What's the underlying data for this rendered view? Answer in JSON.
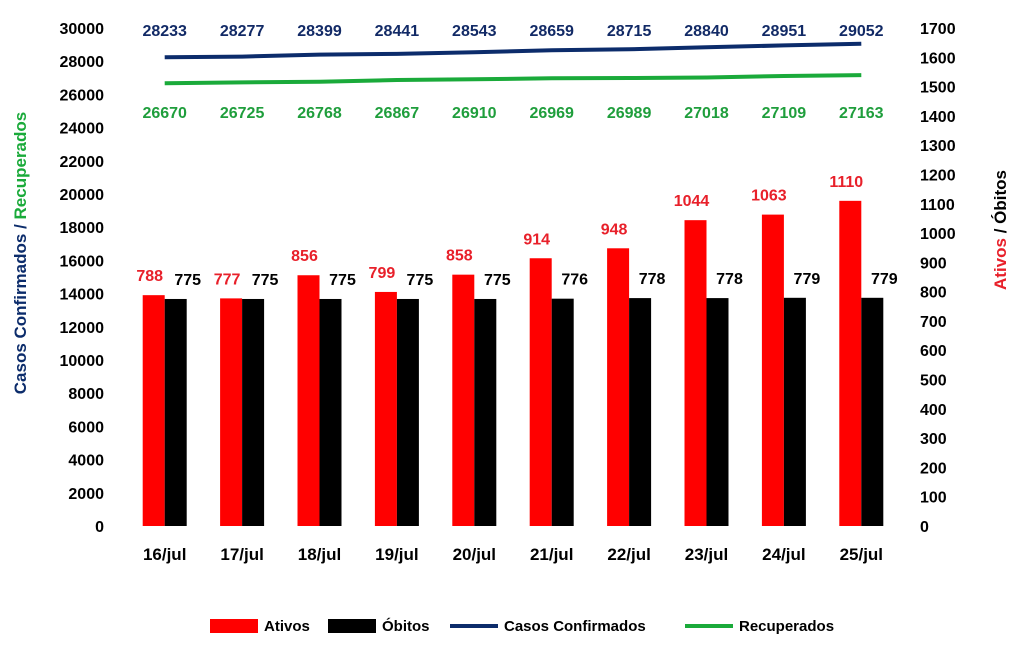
{
  "colors": {
    "ativos": "#ff0000",
    "obitos": "#000000",
    "confirmados": "#0c2c6b",
    "recuperados": "#1aaa3a",
    "ativos_label": "#e8202a",
    "recuperados_label": "#1f9e3c",
    "confirmados_label": "#122a66"
  },
  "axes": {
    "left_title_part1": "Casos Confirmados",
    "left_title_sep": " / ",
    "left_title_part2": "Recuperados",
    "right_title_part1": "Ativos",
    "right_title_sep": " / ",
    "right_title_part2": "Óbitos"
  },
  "chart_data": {
    "type": "bar",
    "categories": [
      "16/jul",
      "17/jul",
      "18/jul",
      "19/jul",
      "20/jul",
      "21/jul",
      "22/jul",
      "23/jul",
      "24/jul",
      "25/jul"
    ],
    "series": [
      {
        "name": "Ativos",
        "type": "bar",
        "axis": "right",
        "values": [
          788,
          777,
          856,
          799,
          858,
          914,
          948,
          1044,
          1063,
          1110
        ]
      },
      {
        "name": "Óbitos",
        "type": "bar",
        "axis": "right",
        "values": [
          775,
          775,
          775,
          775,
          775,
          776,
          778,
          778,
          779,
          779
        ]
      },
      {
        "name": "Casos Confirmados",
        "type": "line",
        "axis": "left",
        "values": [
          28233,
          28277,
          28399,
          28441,
          28543,
          28659,
          28715,
          28840,
          28951,
          29052
        ]
      },
      {
        "name": "Recuperados",
        "type": "line",
        "axis": "left",
        "values": [
          26670,
          26725,
          26768,
          26867,
          26910,
          26969,
          26989,
          27018,
          27109,
          27163
        ]
      }
    ],
    "ylabel": "Casos Confirmados / Recuperados",
    "y2label": "Ativos / Óbitos",
    "ylim": [
      0,
      30000
    ],
    "y2lim": [
      0,
      1700
    ],
    "y_ticks": [
      0,
      2000,
      4000,
      6000,
      8000,
      10000,
      12000,
      14000,
      16000,
      18000,
      20000,
      22000,
      24000,
      26000,
      28000,
      30000
    ],
    "y2_ticks": [
      0,
      100,
      200,
      300,
      400,
      500,
      600,
      700,
      800,
      900,
      1000,
      1100,
      1200,
      1300,
      1400,
      1500,
      1600,
      1700
    ],
    "grid": false,
    "legend_position": "bottom"
  }
}
